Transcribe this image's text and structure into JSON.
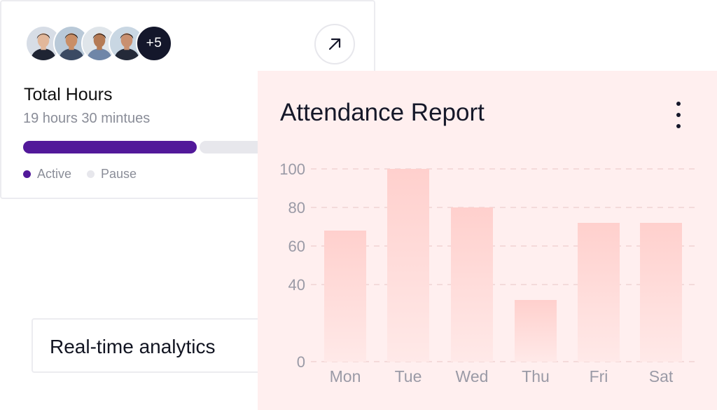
{
  "hours_card": {
    "avatars": [
      {
        "name": "avatar-1",
        "skin": "#e2b79a",
        "hair": "#2b1d16",
        "shirt": "#1f2433",
        "bg": "#d7dde6"
      },
      {
        "name": "avatar-2",
        "skin": "#c98e66",
        "hair": "#1c1410",
        "shirt": "#3b4a63",
        "bg": "#b9c9d8"
      },
      {
        "name": "avatar-3",
        "skin": "#b57b55",
        "hair": "#1a1210",
        "shirt": "#6f86a8",
        "bg": "#dfe5ea"
      },
      {
        "name": "avatar-4",
        "skin": "#c99070",
        "hair": "#17110f",
        "shirt": "#242a39",
        "bg": "#c9d7e3"
      }
    ],
    "more_count": "+5",
    "title": "Total Hours",
    "subtitle": "19 hours 30 mintues",
    "progress": {
      "active_fraction": 0.5
    },
    "legend": [
      {
        "label": "Active",
        "color": "#52199a"
      },
      {
        "label": "Pause",
        "color": "#e7e7ec"
      }
    ]
  },
  "analytics": {
    "label": "Real-time analytics"
  },
  "report": {
    "title": "Attendance Report"
  },
  "chart_data": {
    "type": "bar",
    "title": "Attendance Report",
    "categories": [
      "Mon",
      "Tue",
      "Wed",
      "Thu",
      "Fri",
      "Sat"
    ],
    "values": [
      68,
      100,
      80,
      32,
      72,
      72
    ],
    "ylim": [
      0,
      100
    ],
    "yticks": [
      0,
      40,
      60,
      80,
      100
    ],
    "grid": true,
    "xlabel": "",
    "ylabel": "",
    "bar_color_top": "#ffd0cd",
    "bar_color_bottom": "#ffe9e8"
  }
}
